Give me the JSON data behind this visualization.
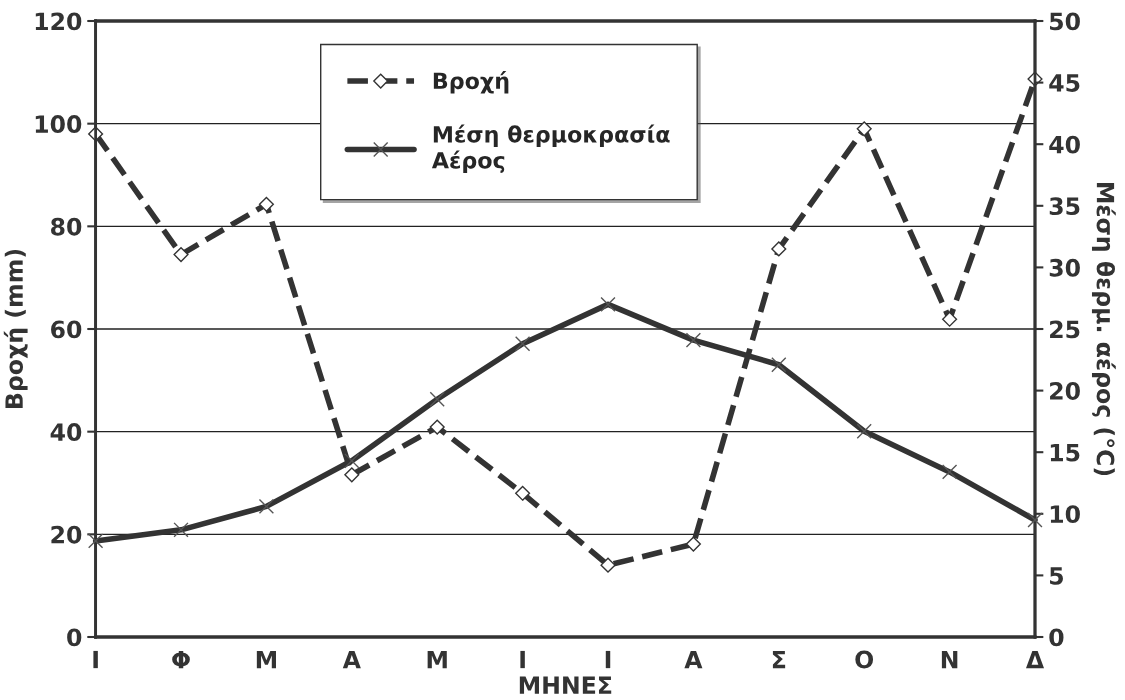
{
  "chart_data": {
    "type": "line",
    "xlabel": "ΜΗΝΕΣ",
    "ylabel": "Βροχή (mm)",
    "y2label": "Μέση θερμ. αέρος (°C)",
    "categories": [
      "Ι",
      "Φ",
      "Μ",
      "Α",
      "Μ",
      "Ι",
      "Ι",
      "Α",
      "Σ",
      "Ο",
      "Ν",
      "Δ"
    ],
    "series": [
      {
        "name": "Βροχή",
        "color": "#333333",
        "marker": "diamond",
        "line_style": "dashed",
        "values": [
          98,
          74.5,
          84.3,
          31.6,
          40.9,
          28,
          14,
          18.1,
          75.6,
          99,
          61.9,
          108.7
        ]
      },
      {
        "name": "Μέση θερμοκρασία\nΑέρος",
        "color": "#333333",
        "marker": "cross",
        "line_style": "solid",
        "axis": "y2",
        "values": [
          7.8,
          8.7,
          10.6,
          14.3,
          19.3,
          23.8,
          27,
          24.1,
          22.1,
          16.7,
          13.4,
          9.5
        ]
      }
    ],
    "ylim": [
      0,
      120
    ],
    "yticks": [
      0,
      20,
      40,
      60,
      80,
      100,
      120
    ],
    "y2lim": [
      0,
      50
    ],
    "y2ticks": [
      0,
      5,
      10,
      15,
      20,
      25,
      30,
      35,
      40,
      45,
      50
    ],
    "grid": "y",
    "legend": "top"
  }
}
